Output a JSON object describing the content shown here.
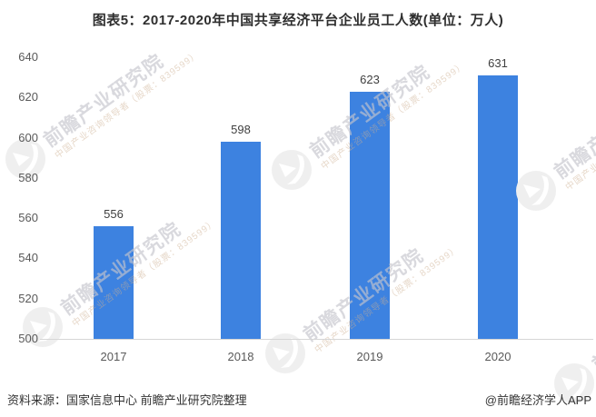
{
  "title": "图表5：2017-2020年中国共享经济平台企业员工人数(单位：万人)",
  "chart_data": {
    "type": "bar",
    "categories": [
      "2017",
      "2018",
      "2019",
      "2020"
    ],
    "values": [
      556,
      598,
      623,
      631
    ],
    "title": "图表5：2017-2020年中国共享经济平台企业员工人数(单位：万人)",
    "xlabel": "",
    "ylabel": "",
    "ylim": [
      500,
      640
    ],
    "yticks": [
      500,
      520,
      540,
      560,
      580,
      600,
      620,
      640
    ],
    "bar_color": "#3d82e0",
    "grid": false,
    "legend": false
  },
  "footer": {
    "source": "资料来源：国家信息中心 前瞻产业研究院整理",
    "credit": "@前瞻经济学人APP"
  },
  "watermark": {
    "logo": "qianzhan-bird-logo",
    "main": "前瞻产业研究院",
    "sub": "中国产业咨询领导者（股票：839599）"
  }
}
